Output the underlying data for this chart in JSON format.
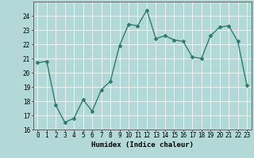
{
  "title": "",
  "xlabel": "Humidex (Indice chaleur)",
  "x": [
    0,
    1,
    2,
    3,
    4,
    5,
    6,
    7,
    8,
    9,
    10,
    11,
    12,
    13,
    14,
    15,
    16,
    17,
    18,
    19,
    20,
    21,
    22,
    23
  ],
  "y": [
    20.7,
    20.8,
    17.7,
    16.5,
    16.8,
    18.1,
    17.3,
    18.8,
    19.4,
    21.9,
    23.4,
    23.3,
    24.4,
    22.4,
    22.6,
    22.3,
    22.2,
    21.1,
    21.0,
    22.6,
    23.2,
    23.3,
    22.2,
    19.1
  ],
  "line_color": "#2e7d6e",
  "marker": "D",
  "marker_size": 2.0,
  "bg_color": "#b2d8d8",
  "grid_color": "#ffffff",
  "ylim": [
    16,
    25
  ],
  "yticks": [
    16,
    17,
    18,
    19,
    20,
    21,
    22,
    23,
    24
  ],
  "xticks": [
    0,
    1,
    2,
    3,
    4,
    5,
    6,
    7,
    8,
    9,
    10,
    11,
    12,
    13,
    14,
    15,
    16,
    17,
    18,
    19,
    20,
    21,
    22,
    23
  ],
  "tick_fontsize": 5.5,
  "label_fontsize": 6.5,
  "linewidth": 1.0
}
